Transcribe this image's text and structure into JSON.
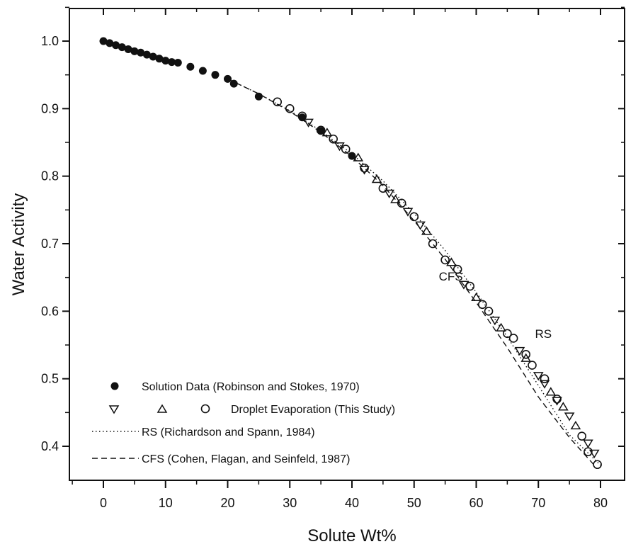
{
  "chart_data": {
    "type": "scatter",
    "title": "",
    "xlabel": "Solute Wt%",
    "ylabel": "Water Activity",
    "xlim": [
      -5,
      82
    ],
    "ylim": [
      0.34,
      1.05
    ],
    "x_ticks": [
      0,
      10,
      20,
      30,
      40,
      50,
      60,
      70,
      80
    ],
    "x_tick_labels": [
      "0",
      "10",
      "20",
      "30",
      "40",
      "50",
      "60",
      "70",
      "80"
    ],
    "y_ticks": [
      0.4,
      0.5,
      0.6,
      0.7,
      0.8,
      0.9,
      1.0
    ],
    "y_tick_labels": [
      "0.4",
      "0.5",
      "0.6",
      "0.7",
      "0.8",
      "0.9",
      "1.0"
    ],
    "grid": false,
    "legend_position": "bottom-left",
    "legend": [
      {
        "marker": "filled-circle",
        "text": "Solution Data (Robinson and Stokes, 1970)"
      },
      {
        "marker": "triangles-and-circle",
        "text": "Droplet Evaporation (This Study)"
      },
      {
        "marker": "dotted-line",
        "text": "RS (Richardson and Spann, 1984)"
      },
      {
        "marker": "dashed-line",
        "text": "CFS (Cohen, Flagan, and Seinfeld, 1987)"
      }
    ],
    "annotations": [
      {
        "text": "CFS",
        "x": 55,
        "y": 0.652
      },
      {
        "text": "RS",
        "x": 69,
        "y": 0.567
      }
    ],
    "series": [
      {
        "name": "Solution Data (Robinson and Stokes, 1970)",
        "marker": "filled-circle",
        "x": [
          0,
          1,
          2,
          3,
          4,
          5,
          6,
          7,
          8,
          9,
          10,
          11,
          12,
          14,
          16,
          18,
          20,
          21,
          25,
          32,
          35,
          40
        ],
        "y": [
          1.0,
          0.997,
          0.994,
          0.991,
          0.988,
          0.985,
          0.983,
          0.98,
          0.977,
          0.974,
          0.971,
          0.969,
          0.968,
          0.962,
          0.956,
          0.95,
          0.944,
          0.937,
          0.918,
          0.887,
          0.867,
          0.83
        ]
      },
      {
        "name": "Droplet Evaporation (This Study) - down triangles",
        "marker": "down-triangle",
        "x": [
          33,
          38,
          42,
          46,
          49,
          51,
          58,
          63,
          67,
          70,
          71,
          73,
          75,
          78,
          79
        ],
        "y": [
          0.88,
          0.845,
          0.81,
          0.775,
          0.748,
          0.728,
          0.64,
          0.587,
          0.542,
          0.505,
          0.493,
          0.468,
          0.445,
          0.405,
          0.39
        ]
      },
      {
        "name": "Droplet Evaporation (This Study) - up triangles",
        "marker": "up-triangle",
        "x": [
          36,
          41,
          44,
          47,
          52,
          56,
          60,
          64,
          68,
          72,
          74,
          76
        ],
        "y": [
          0.864,
          0.827,
          0.795,
          0.765,
          0.718,
          0.672,
          0.62,
          0.575,
          0.53,
          0.48,
          0.458,
          0.43
        ]
      },
      {
        "name": "Droplet Evaporation (This Study) - circles",
        "marker": "open-circle",
        "x": [
          28,
          30,
          32,
          35,
          37,
          39,
          42,
          45,
          48,
          50,
          53,
          55,
          57,
          59,
          61,
          62,
          65,
          66,
          68,
          69,
          71,
          73,
          77,
          78,
          79.5
        ],
        "y": [
          0.91,
          0.9,
          0.889,
          0.868,
          0.855,
          0.84,
          0.812,
          0.782,
          0.76,
          0.74,
          0.7,
          0.676,
          0.662,
          0.637,
          0.61,
          0.6,
          0.567,
          0.56,
          0.536,
          0.52,
          0.5,
          0.47,
          0.415,
          0.392,
          0.373
        ]
      },
      {
        "name": "RS (Richardson and Spann, 1984)",
        "style": "dotted-line",
        "x": [
          20,
          25,
          30,
          35,
          40,
          45,
          50,
          55,
          60,
          65,
          70,
          75,
          80
        ],
        "y": [
          0.944,
          0.922,
          0.897,
          0.867,
          0.833,
          0.793,
          0.745,
          0.69,
          0.628,
          0.562,
          0.49,
          0.417,
          0.372
        ]
      },
      {
        "name": "CFS (Cohen, Flagan, and Seinfeld, 1987)",
        "style": "dashed-line",
        "x": [
          20,
          25,
          30,
          35,
          40,
          45,
          50,
          55,
          60,
          65,
          70,
          75,
          79
        ],
        "y": [
          0.944,
          0.922,
          0.896,
          0.865,
          0.829,
          0.786,
          0.734,
          0.677,
          0.613,
          0.546,
          0.473,
          0.413,
          0.372
        ]
      }
    ]
  }
}
